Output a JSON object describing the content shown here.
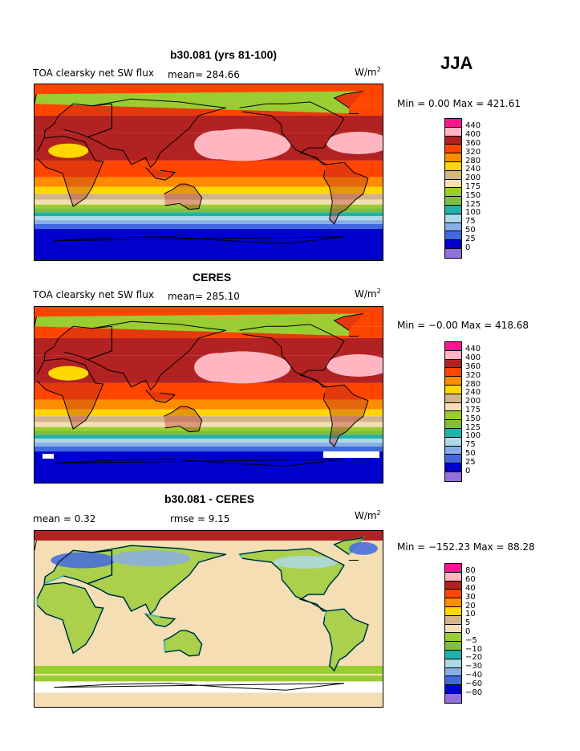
{
  "season": "JJA",
  "panels": [
    {
      "title": "b30.081 (yrs 81-100)",
      "label": "TOA clearsky net SW flux",
      "mean_text": "mean= 284.66",
      "units_base": "W/m",
      "units_exp": "2",
      "min_max": "Min =    0.00 Max = 421.61",
      "colorbar": {
        "labels": [
          "440",
          "400",
          "360",
          "320",
          "280",
          "240",
          "200",
          "175",
          "150",
          "125",
          "100",
          "75",
          "50",
          "25",
          "0"
        ],
        "colors": [
          "#ff1493",
          "#ffb6c1",
          "#b22222",
          "#ff4500",
          "#ff8c00",
          "#ffd700",
          "#d2b48c",
          "#f5deb3",
          "#9acd32",
          "#7fbf3f",
          "#20b2aa",
          "#add8e6",
          "#87aee8",
          "#4169e1",
          "#0000cd",
          "#9370db"
        ]
      },
      "map": {
        "base": "south_polar_bands",
        "dataset": "model"
      }
    },
    {
      "title": "CERES",
      "label": "TOA clearsky net SW flux",
      "mean_text": "mean= 285.10",
      "units_base": "W/m",
      "units_exp": "2",
      "min_max": "Min =  −0.00 Max = 418.68",
      "colorbar": {
        "labels": [
          "440",
          "400",
          "360",
          "320",
          "280",
          "240",
          "200",
          "175",
          "150",
          "125",
          "100",
          "75",
          "50",
          "25",
          "0"
        ],
        "colors": [
          "#ff1493",
          "#ffb6c1",
          "#b22222",
          "#ff4500",
          "#ff8c00",
          "#ffd700",
          "#d2b48c",
          "#f5deb3",
          "#9acd32",
          "#7fbf3f",
          "#20b2aa",
          "#add8e6",
          "#87aee8",
          "#4169e1",
          "#0000cd",
          "#9370db"
        ]
      },
      "map": {
        "base": "south_polar_bands",
        "dataset": "obs"
      }
    },
    {
      "title": "b30.081 - CERES",
      "label": "mean =     0.32",
      "mean_text": "rmse =    9.15",
      "units_base": "W/m",
      "units_exp": "2",
      "min_max": "Min = −152.23 Max =   88.28",
      "colorbar": {
        "labels": [
          "80",
          "60",
          "40",
          "30",
          "20",
          "10",
          "5",
          "0",
          "−5",
          "−10",
          "−20",
          "−30",
          "−40",
          "−60",
          "−80"
        ],
        "colors": [
          "#ff1493",
          "#ffb6c1",
          "#b22222",
          "#ff4500",
          "#ff8c00",
          "#ffd700",
          "#d2b48c",
          "#f5deb3",
          "#9acd32",
          "#7fbf3f",
          "#20b2aa",
          "#add8e6",
          "#87aee8",
          "#4169e1",
          "#0000cd",
          "#9370db"
        ]
      },
      "map": {
        "base": "difference",
        "dataset": "diff"
      }
    }
  ]
}
